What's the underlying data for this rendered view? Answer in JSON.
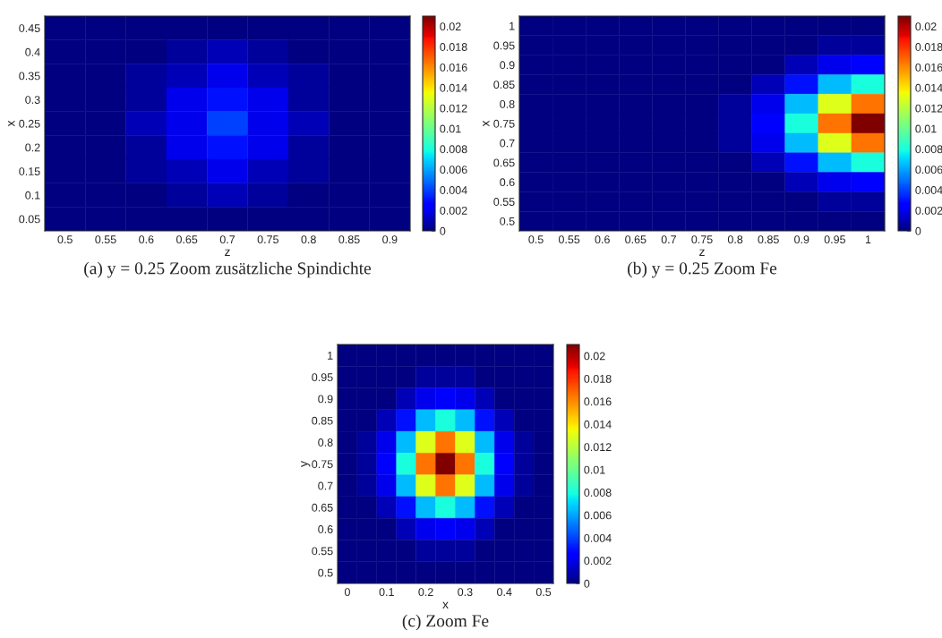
{
  "chart_data": [
    {
      "type": "heatmap",
      "title": "(a) y = 0.25 Zoom zusätzliche Spindichte",
      "xlabel": "z",
      "ylabel": "x",
      "categories": [
        "0.5",
        "0.55",
        "0.6",
        "0.65",
        "0.7",
        "0.75",
        "0.8",
        "0.85",
        "0.9"
      ],
      "y_categories": [
        "0.45",
        "0.4",
        "0.35",
        "0.3",
        "0.25",
        "0.2",
        "0.15",
        "0.1",
        "0.05"
      ],
      "cells": [
        [
          0,
          0,
          0,
          0,
          0,
          0,
          0,
          0,
          0
        ],
        [
          0,
          0,
          0,
          0.0005,
          0.001,
          0.0005,
          0,
          0,
          0
        ],
        [
          0,
          0,
          0.0005,
          0.001,
          0.002,
          0.001,
          0.0005,
          0,
          0
        ],
        [
          0,
          0,
          0.0005,
          0.002,
          0.003,
          0.002,
          0.0005,
          0,
          0
        ],
        [
          0,
          0,
          0.001,
          0.002,
          0.004,
          0.002,
          0.001,
          0,
          0
        ],
        [
          0,
          0,
          0.0005,
          0.002,
          0.003,
          0.002,
          0.0005,
          0,
          0
        ],
        [
          0,
          0,
          0.0005,
          0.001,
          0.002,
          0.001,
          0.0005,
          0,
          0
        ],
        [
          0,
          0,
          0,
          0.0005,
          0.001,
          0.0005,
          0,
          0,
          0
        ],
        [
          0,
          0,
          0,
          0,
          0,
          0,
          0,
          0,
          0
        ]
      ],
      "clim": [
        0,
        0.021
      ],
      "cticks": [
        0,
        0.002,
        0.004,
        0.006,
        0.008,
        0.01,
        0.012,
        0.014,
        0.016,
        0.018,
        0.02
      ]
    },
    {
      "type": "heatmap",
      "title": "(b) y = 0.25 Zoom Fe",
      "xlabel": "z",
      "ylabel": "x",
      "categories": [
        "0.5",
        "0.55",
        "0.6",
        "0.65",
        "0.7",
        "0.75",
        "0.8",
        "0.85",
        "0.9",
        "0.95",
        "1"
      ],
      "y_categories": [
        "1",
        "0.95",
        "0.9",
        "0.85",
        "0.8",
        "0.75",
        "0.7",
        "0.65",
        "0.6",
        "0.55",
        "0.5"
      ],
      "cells": [
        [
          0,
          0,
          0,
          0,
          0,
          0,
          0,
          0,
          0,
          0,
          0
        ],
        [
          0,
          0,
          0,
          0,
          0,
          0,
          0,
          0,
          0,
          0.0005,
          0.0005
        ],
        [
          0,
          0,
          0,
          0,
          0,
          0,
          0,
          0,
          0.001,
          0.002,
          0.0025
        ],
        [
          0,
          0,
          0,
          0,
          0,
          0,
          0,
          0.001,
          0.003,
          0.0065,
          0.008
        ],
        [
          0,
          0,
          0,
          0,
          0,
          0,
          0.0005,
          0.002,
          0.0065,
          0.013,
          0.0165
        ],
        [
          0,
          0,
          0,
          0,
          0,
          0,
          0.0005,
          0.0025,
          0.008,
          0.0165,
          0.021
        ],
        [
          0,
          0,
          0,
          0,
          0,
          0,
          0.0005,
          0.002,
          0.0065,
          0.013,
          0.0165
        ],
        [
          0,
          0,
          0,
          0,
          0,
          0,
          0,
          0.001,
          0.003,
          0.0065,
          0.008
        ],
        [
          0,
          0,
          0,
          0,
          0,
          0,
          0,
          0,
          0.001,
          0.002,
          0.0025
        ],
        [
          0,
          0,
          0,
          0,
          0,
          0,
          0,
          0,
          0,
          0.0005,
          0.0005
        ],
        [
          0,
          0,
          0,
          0,
          0,
          0,
          0,
          0,
          0,
          0,
          0
        ]
      ],
      "clim": [
        0,
        0.021
      ],
      "cticks": [
        0,
        0.002,
        0.004,
        0.006,
        0.008,
        0.01,
        0.012,
        0.014,
        0.016,
        0.018,
        0.02
      ]
    },
    {
      "type": "heatmap",
      "title": "(c) Zoom Fe",
      "xlabel": "x",
      "ylabel": "y",
      "categories": [
        "0",
        null,
        "0.1",
        null,
        "0.2",
        null,
        "0.3",
        null,
        "0.4",
        null,
        "0.5"
      ],
      "y_categories": [
        "1",
        "0.95",
        "0.9",
        "0.85",
        "0.8",
        "0.75",
        "0.7",
        "0.65",
        "0.6",
        "0.55",
        "0.5"
      ],
      "cells": [
        [
          0,
          0,
          0,
          0,
          0,
          0,
          0,
          0,
          0,
          0,
          0
        ],
        [
          0,
          0,
          0,
          0,
          0.0005,
          0.0005,
          0.0005,
          0,
          0,
          0,
          0
        ],
        [
          0,
          0,
          0,
          0.001,
          0.002,
          0.0025,
          0.002,
          0.001,
          0,
          0,
          0
        ],
        [
          0,
          0,
          0.001,
          0.003,
          0.0065,
          0.008,
          0.0065,
          0.003,
          0.001,
          0,
          0
        ],
        [
          0,
          0.0005,
          0.002,
          0.0065,
          0.013,
          0.0165,
          0.013,
          0.0065,
          0.002,
          0.0005,
          0
        ],
        [
          0,
          0.0005,
          0.0025,
          0.008,
          0.0165,
          0.021,
          0.0165,
          0.008,
          0.0025,
          0.0005,
          0
        ],
        [
          0,
          0.0005,
          0.002,
          0.0065,
          0.013,
          0.0165,
          0.013,
          0.0065,
          0.002,
          0.0005,
          0
        ],
        [
          0,
          0,
          0.001,
          0.003,
          0.0065,
          0.008,
          0.0065,
          0.003,
          0.001,
          0,
          0
        ],
        [
          0,
          0,
          0,
          0.001,
          0.002,
          0.0025,
          0.002,
          0.001,
          0,
          0,
          0
        ],
        [
          0,
          0,
          0,
          0,
          0.0005,
          0.0005,
          0.0005,
          0,
          0,
          0,
          0
        ],
        [
          0,
          0,
          0,
          0,
          0,
          0,
          0,
          0,
          0,
          0,
          0
        ]
      ],
      "clim": [
        0,
        0.021
      ],
      "cticks": [
        0,
        0.002,
        0.004,
        0.006,
        0.008,
        0.01,
        0.012,
        0.014,
        0.016,
        0.018,
        0.02
      ]
    }
  ]
}
